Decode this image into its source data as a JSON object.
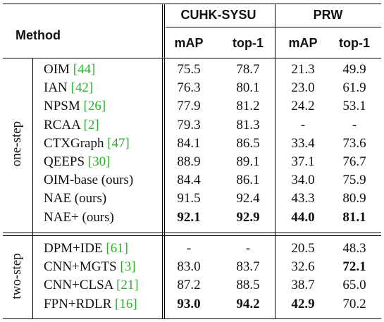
{
  "header": {
    "method": "Method",
    "groups": [
      "CUHK-SYSU",
      "PRW"
    ],
    "metrics": [
      "mAP",
      "top-1",
      "mAP",
      "top-1"
    ]
  },
  "sections": [
    {
      "label": "one-step",
      "rows": [
        {
          "name": "OIM ",
          "cite": "[44]",
          "values": [
            "75.5",
            "78.7",
            "21.3",
            "49.9"
          ],
          "bold": [
            false,
            false,
            false,
            false
          ]
        },
        {
          "name": "IAN ",
          "cite": "[42]",
          "values": [
            "76.3",
            "80.1",
            "23.0",
            "61.9"
          ],
          "bold": [
            false,
            false,
            false,
            false
          ]
        },
        {
          "name": "NPSM ",
          "cite": "[26]",
          "values": [
            "77.9",
            "81.2",
            "24.2",
            "53.1"
          ],
          "bold": [
            false,
            false,
            false,
            false
          ]
        },
        {
          "name": "RCAA ",
          "cite": "[2]",
          "values": [
            "79.3",
            "81.3",
            "-",
            "-"
          ],
          "bold": [
            false,
            false,
            false,
            false
          ]
        },
        {
          "name": "CTXGraph ",
          "cite": "[47]",
          "values": [
            "84.1",
            "86.5",
            "33.4",
            "73.6"
          ],
          "bold": [
            false,
            false,
            false,
            false
          ]
        },
        {
          "name": "QEEPS ",
          "cite": "[30]",
          "values": [
            "88.9",
            "89.1",
            "37.1",
            "76.7"
          ],
          "bold": [
            false,
            false,
            false,
            false
          ]
        },
        {
          "name": "OIM-base (ours)",
          "cite": "",
          "values": [
            "84.4",
            "86.1",
            "34.0",
            "75.9"
          ],
          "bold": [
            false,
            false,
            false,
            false
          ]
        },
        {
          "name": "NAE (ours)",
          "cite": "",
          "values": [
            "91.5",
            "92.4",
            "43.3",
            "80.9"
          ],
          "bold": [
            false,
            false,
            false,
            false
          ]
        },
        {
          "name": "NAE+ (ours)",
          "cite": "",
          "values": [
            "92.1",
            "92.9",
            "44.0",
            "81.1"
          ],
          "bold": [
            true,
            true,
            true,
            true
          ]
        }
      ]
    },
    {
      "label": "two-step",
      "rows": [
        {
          "name": "DPM+IDE ",
          "cite": "[61]",
          "values": [
            "-",
            "-",
            "20.5",
            "48.3"
          ],
          "bold": [
            false,
            false,
            false,
            false
          ]
        },
        {
          "name": "CNN+MGTS ",
          "cite": "[3]",
          "values": [
            "83.0",
            "83.7",
            "32.6",
            "72.1"
          ],
          "bold": [
            false,
            false,
            false,
            true
          ]
        },
        {
          "name": "CNN+CLSA ",
          "cite": "[21]",
          "values": [
            "87.2",
            "88.5",
            "38.7",
            "65.0"
          ],
          "bold": [
            false,
            false,
            false,
            false
          ]
        },
        {
          "name": "FPN+RDLR ",
          "cite": "[16]",
          "values": [
            "93.0",
            "94.2",
            "42.9",
            "70.2"
          ],
          "bold": [
            true,
            true,
            true,
            false
          ]
        }
      ]
    }
  ]
}
